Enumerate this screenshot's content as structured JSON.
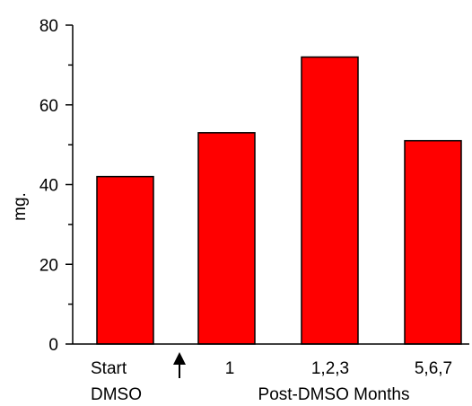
{
  "chart_data": {
    "type": "bar",
    "categories": [
      "Start DMSO",
      "1",
      "1,2,3",
      "5,6,7"
    ],
    "category_lines": [
      [
        "Start",
        "DMSO"
      ],
      [
        "1"
      ],
      [
        "1,2,3"
      ],
      [
        "5,6,7"
      ]
    ],
    "values": [
      42,
      53,
      72,
      51
    ],
    "ylabel": "mg.",
    "xlabel": "Post-DMSO Months",
    "ylim": [
      0,
      80
    ],
    "yticks": [
      0,
      20,
      40,
      60,
      80
    ],
    "y_tick_labels": [
      "0",
      "20",
      "40",
      "60",
      "80"
    ],
    "grid": false,
    "bar_color": "#ff0000",
    "bar_edge_color": "#000000",
    "annotation": {
      "type": "arrow",
      "icon": "up-arrow-icon",
      "meaning": "start of DMSO treatment"
    }
  }
}
